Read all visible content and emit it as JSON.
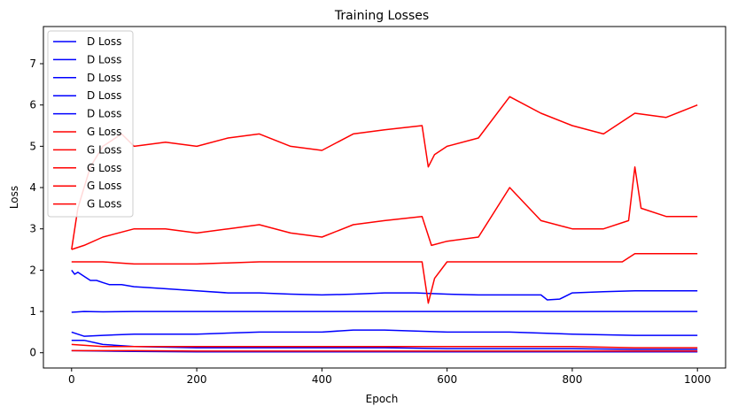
{
  "chart_data": {
    "type": "line",
    "title": "Training Losses",
    "xlabel": "Epoch",
    "ylabel": "Loss",
    "xlim": [
      -45,
      1045
    ],
    "ylim": [
      -0.37,
      7.9
    ],
    "xticks": [
      0,
      200,
      400,
      600,
      800,
      1000
    ],
    "yticks": [
      0,
      1,
      2,
      3,
      4,
      5,
      6,
      7
    ],
    "grid": false,
    "legend": "top-left",
    "colors": {
      "d": "#0000ff",
      "g": "#ff0000"
    },
    "series": [
      {
        "name": "D Loss",
        "color": "#0000ff",
        "values": [
          [
            0,
            2.0
          ],
          [
            5,
            1.9
          ],
          [
            10,
            1.95
          ],
          [
            20,
            1.85
          ],
          [
            30,
            1.75
          ],
          [
            40,
            1.75
          ],
          [
            50,
            1.7
          ],
          [
            60,
            1.65
          ],
          [
            80,
            1.65
          ],
          [
            100,
            1.6
          ],
          [
            120,
            1.58
          ],
          [
            150,
            1.55
          ],
          [
            200,
            1.5
          ],
          [
            250,
            1.45
          ],
          [
            300,
            1.45
          ],
          [
            350,
            1.42
          ],
          [
            400,
            1.4
          ],
          [
            450,
            1.42
          ],
          [
            500,
            1.45
          ],
          [
            550,
            1.45
          ],
          [
            600,
            1.42
          ],
          [
            650,
            1.4
          ],
          [
            700,
            1.4
          ],
          [
            750,
            1.4
          ],
          [
            760,
            1.28
          ],
          [
            780,
            1.3
          ],
          [
            800,
            1.45
          ],
          [
            850,
            1.48
          ],
          [
            900,
            1.5
          ],
          [
            950,
            1.5
          ],
          [
            1000,
            1.5
          ]
        ]
      },
      {
        "name": "D Loss",
        "color": "#0000ff",
        "values": [
          [
            0,
            0.3
          ],
          [
            20,
            0.3
          ],
          [
            50,
            0.2
          ],
          [
            100,
            0.15
          ],
          [
            200,
            0.12
          ],
          [
            300,
            0.12
          ],
          [
            400,
            0.12
          ],
          [
            500,
            0.12
          ],
          [
            600,
            0.1
          ],
          [
            700,
            0.1
          ],
          [
            800,
            0.1
          ],
          [
            900,
            0.08
          ],
          [
            1000,
            0.08
          ]
        ]
      },
      {
        "name": "D Loss",
        "color": "#0000ff",
        "values": [
          [
            0,
            0.98
          ],
          [
            20,
            1.0
          ],
          [
            50,
            0.99
          ],
          [
            100,
            1.0
          ],
          [
            200,
            1.0
          ],
          [
            300,
            1.0
          ],
          [
            400,
            1.0
          ],
          [
            500,
            1.0
          ],
          [
            600,
            1.0
          ],
          [
            700,
            1.0
          ],
          [
            800,
            1.0
          ],
          [
            900,
            1.0
          ],
          [
            1000,
            1.0
          ]
        ]
      },
      {
        "name": "D Loss",
        "color": "#0000ff",
        "values": [
          [
            0,
            0.05
          ],
          [
            100,
            0.03
          ],
          [
            200,
            0.02
          ],
          [
            400,
            0.02
          ],
          [
            600,
            0.02
          ],
          [
            800,
            0.02
          ],
          [
            1000,
            0.02
          ]
        ]
      },
      {
        "name": "D Loss",
        "color": "#0000ff",
        "values": [
          [
            0,
            0.5
          ],
          [
            20,
            0.4
          ],
          [
            50,
            0.42
          ],
          [
            100,
            0.45
          ],
          [
            200,
            0.45
          ],
          [
            300,
            0.5
          ],
          [
            400,
            0.5
          ],
          [
            450,
            0.55
          ],
          [
            500,
            0.55
          ],
          [
            600,
            0.5
          ],
          [
            700,
            0.5
          ],
          [
            800,
            0.45
          ],
          [
            900,
            0.42
          ],
          [
            1000,
            0.42
          ]
        ]
      },
      {
        "name": "G Loss",
        "color": "#ff0000",
        "values": [
          [
            0,
            2.5
          ],
          [
            10,
            3.5
          ],
          [
            20,
            4.0
          ],
          [
            30,
            4.5
          ],
          [
            50,
            5.0
          ],
          [
            80,
            5.3
          ],
          [
            100,
            5.0
          ],
          [
            150,
            5.1
          ],
          [
            200,
            5.0
          ],
          [
            250,
            5.2
          ],
          [
            300,
            5.3
          ],
          [
            350,
            5.0
          ],
          [
            400,
            4.9
          ],
          [
            450,
            5.3
          ],
          [
            500,
            5.4
          ],
          [
            560,
            5.5
          ],
          [
            570,
            4.5
          ],
          [
            580,
            4.8
          ],
          [
            600,
            5.0
          ],
          [
            650,
            5.2
          ],
          [
            700,
            6.2
          ],
          [
            750,
            5.8
          ],
          [
            800,
            5.5
          ],
          [
            850,
            5.3
          ],
          [
            880,
            5.6
          ],
          [
            900,
            5.8
          ],
          [
            950,
            5.7
          ],
          [
            1000,
            6.0
          ]
        ]
      },
      {
        "name": "G Loss",
        "color": "#ff0000",
        "values": [
          [
            0,
            2.5
          ],
          [
            20,
            2.6
          ],
          [
            50,
            2.8
          ],
          [
            100,
            3.0
          ],
          [
            150,
            3.0
          ],
          [
            200,
            2.9
          ],
          [
            250,
            3.0
          ],
          [
            300,
            3.1
          ],
          [
            350,
            2.9
          ],
          [
            400,
            2.8
          ],
          [
            450,
            3.1
          ],
          [
            500,
            3.2
          ],
          [
            560,
            3.3
          ],
          [
            575,
            2.6
          ],
          [
            600,
            2.7
          ],
          [
            650,
            2.8
          ],
          [
            700,
            4.0
          ],
          [
            750,
            3.2
          ],
          [
            800,
            3.0
          ],
          [
            850,
            3.0
          ],
          [
            890,
            3.2
          ],
          [
            900,
            4.5
          ],
          [
            910,
            3.5
          ],
          [
            950,
            3.3
          ],
          [
            1000,
            3.3
          ]
        ]
      },
      {
        "name": "G Loss",
        "color": "#ff0000",
        "values": [
          [
            0,
            2.2
          ],
          [
            20,
            2.2
          ],
          [
            50,
            2.2
          ],
          [
            100,
            2.15
          ],
          [
            200,
            2.15
          ],
          [
            300,
            2.2
          ],
          [
            400,
            2.2
          ],
          [
            500,
            2.2
          ],
          [
            560,
            2.2
          ],
          [
            570,
            1.2
          ],
          [
            580,
            1.8
          ],
          [
            600,
            2.2
          ],
          [
            700,
            2.2
          ],
          [
            800,
            2.2
          ],
          [
            880,
            2.2
          ],
          [
            900,
            2.4
          ],
          [
            1000,
            2.4
          ]
        ]
      },
      {
        "name": "G Loss",
        "color": "#ff0000",
        "values": [
          [
            0,
            0.2
          ],
          [
            50,
            0.15
          ],
          [
            100,
            0.15
          ],
          [
            200,
            0.15
          ],
          [
            300,
            0.15
          ],
          [
            400,
            0.15
          ],
          [
            500,
            0.15
          ],
          [
            600,
            0.15
          ],
          [
            700,
            0.15
          ],
          [
            800,
            0.15
          ],
          [
            900,
            0.12
          ],
          [
            1000,
            0.12
          ]
        ]
      },
      {
        "name": "G Loss",
        "color": "#ff0000",
        "values": [
          [
            0,
            0.05
          ],
          [
            100,
            0.05
          ],
          [
            200,
            0.04
          ],
          [
            400,
            0.04
          ],
          [
            600,
            0.04
          ],
          [
            800,
            0.04
          ],
          [
            1000,
            0.04
          ]
        ]
      }
    ]
  }
}
